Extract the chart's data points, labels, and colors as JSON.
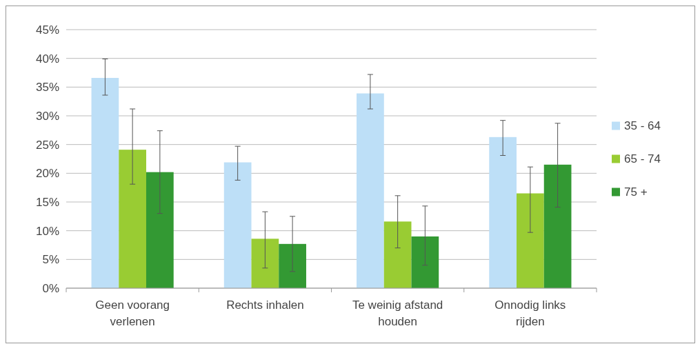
{
  "chart_data": {
    "type": "bar",
    "categories": [
      "Geen voorang verlenen",
      "Rechts inhalen",
      "Te weinig afstand houden",
      "Onnodig links rijden"
    ],
    "series": [
      {
        "name": "35 - 64",
        "color": "#bddff7",
        "values": [
          36.6,
          21.9,
          33.9,
          26.3
        ],
        "errors": [
          [
            33.6,
            39.9
          ],
          [
            18.8,
            24.7
          ],
          [
            31.2,
            37.2
          ],
          [
            23.1,
            29.2
          ]
        ]
      },
      {
        "name": "65 - 74",
        "color": "#99cc33",
        "values": [
          24.1,
          8.6,
          11.6,
          16.5
        ],
        "errors": [
          [
            18.1,
            31.2
          ],
          [
            3.5,
            13.3
          ],
          [
            7.0,
            16.1
          ],
          [
            9.7,
            21.1
          ]
        ]
      },
      {
        "name": "75 +",
        "color": "#339933",
        "values": [
          20.2,
          7.7,
          9.0,
          21.5
        ],
        "errors": [
          [
            13.0,
            27.4
          ],
          [
            2.9,
            12.5
          ],
          [
            4.0,
            14.3
          ],
          [
            14.1,
            28.7
          ]
        ]
      }
    ],
    "ylim": [
      0,
      45
    ],
    "yticks": [
      {
        "value": 0,
        "label": "0%"
      },
      {
        "value": 5,
        "label": "5%"
      },
      {
        "value": 10,
        "label": "10%"
      },
      {
        "value": 15,
        "label": "15%"
      },
      {
        "value": 20,
        "label": "20%"
      },
      {
        "value": 25,
        "label": "25%"
      },
      {
        "value": 30,
        "label": "30%"
      },
      {
        "value": 35,
        "label": "35%"
      },
      {
        "value": 40,
        "label": "40%"
      },
      {
        "value": 45,
        "label": "45%"
      }
    ],
    "grid": "y",
    "legend": "right"
  }
}
